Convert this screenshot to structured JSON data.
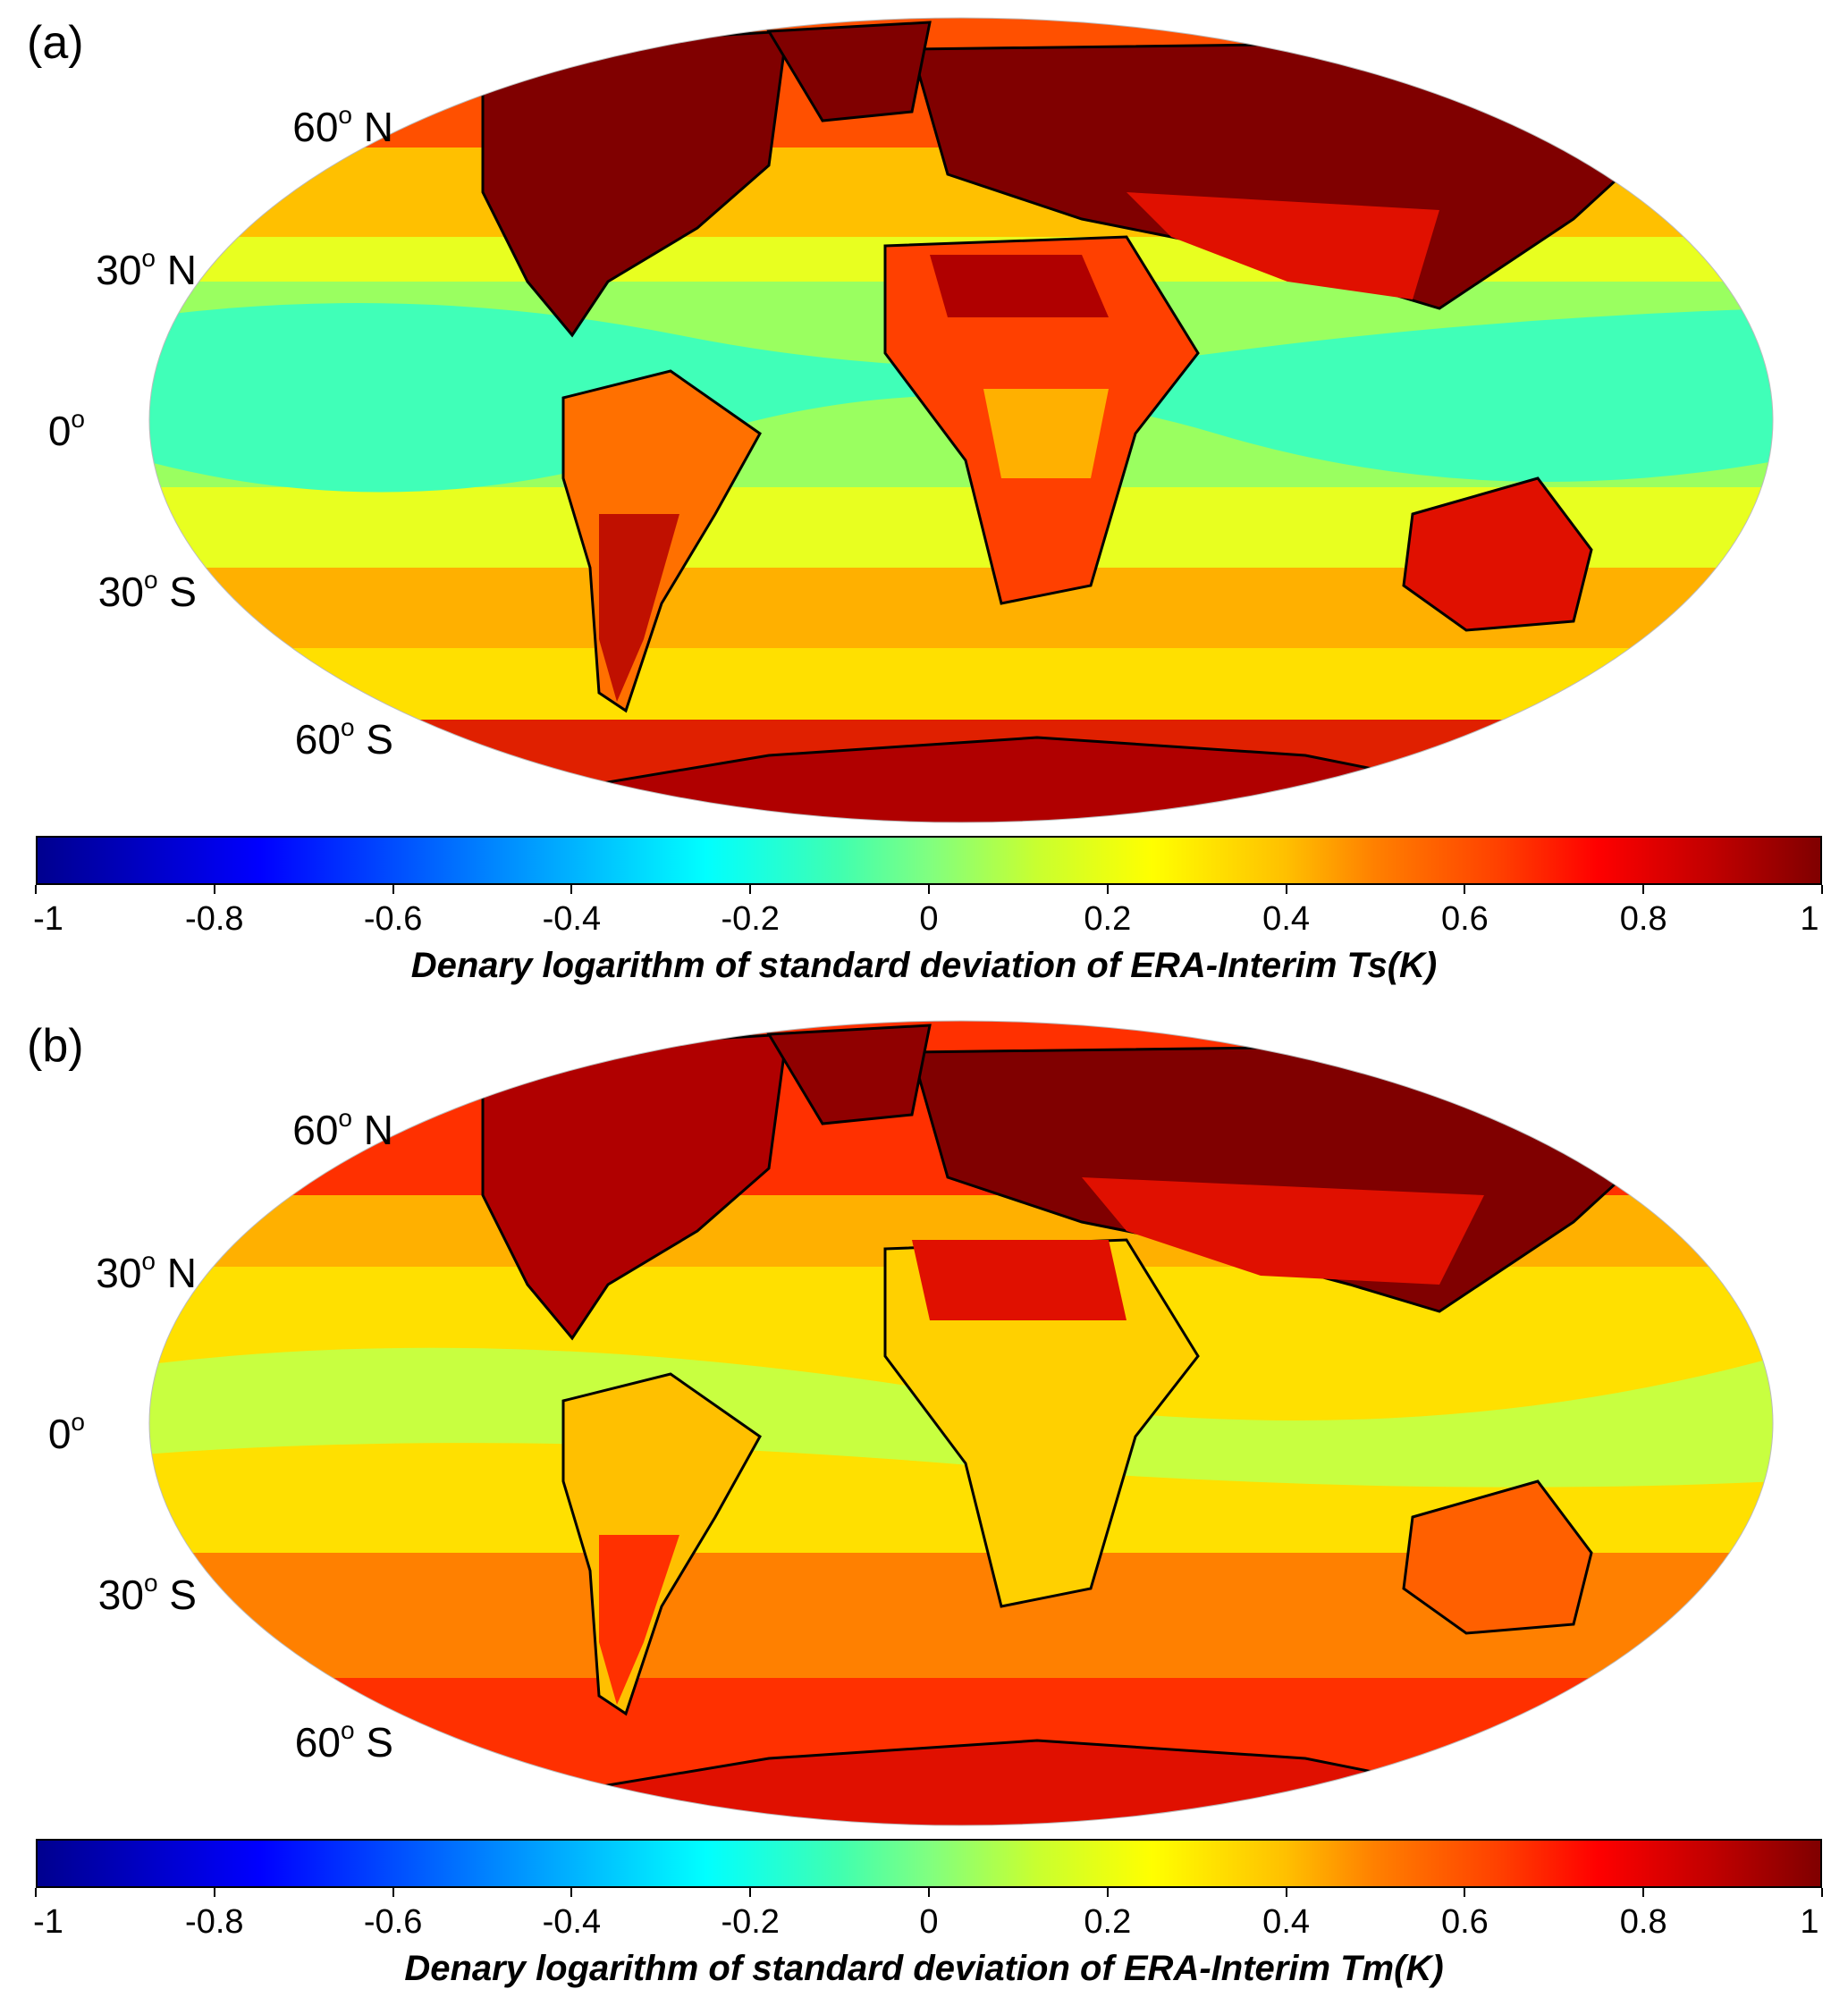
{
  "panels": [
    {
      "label": "(a)",
      "colorbar_title": "Denary logarithm of standard deviation of ERA-Interim Ts(K)"
    },
    {
      "label": "(b)",
      "colorbar_title": "Denary logarithm of standard deviation of ERA-Interim Tm(K)"
    }
  ],
  "latitude_labels": [
    {
      "deg": "60",
      "sup": "o",
      "hemi": " N"
    },
    {
      "deg": "30",
      "sup": "o",
      "hemi": " N"
    },
    {
      "deg": "0",
      "sup": "o",
      "hemi": ""
    },
    {
      "deg": "30",
      "sup": "o",
      "hemi": " S"
    },
    {
      "deg": "60",
      "sup": "o",
      "hemi": " S"
    }
  ],
  "colorbar": {
    "min": -1,
    "max": 1,
    "ticks": [
      "-1",
      "-0.8",
      "-0.6",
      "-0.4",
      "-0.2",
      "0",
      "0.2",
      "0.4",
      "0.6",
      "0.8",
      "1"
    ],
    "colormap": "jet",
    "colors": [
      "#00008f",
      "#0000ff",
      "#00ffff",
      "#ffff00",
      "#ff0000",
      "#800000"
    ]
  },
  "projection": "Mollweide",
  "map_colors": {
    "ocean_tropics_a": "#40ffb8",
    "ocean_mid_a": "#e8ff20",
    "land_hot": "#800000",
    "land_warm": "#e01000",
    "coastline": "#000000"
  }
}
